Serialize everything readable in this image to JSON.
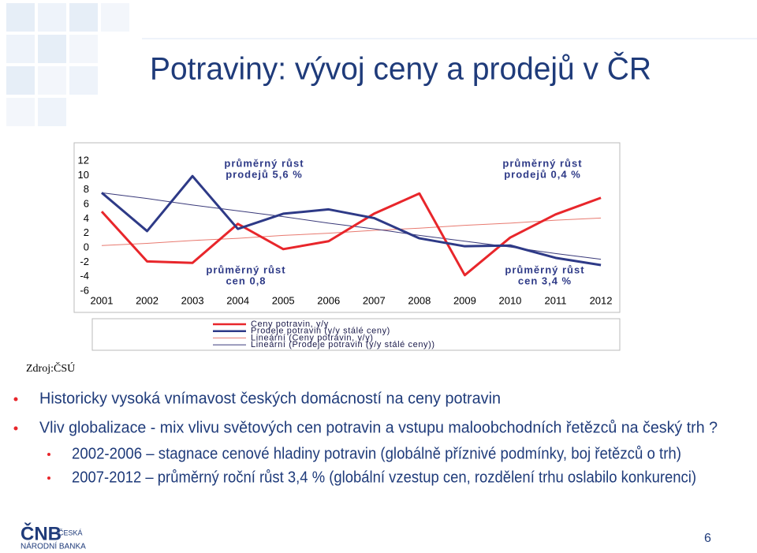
{
  "title": "Potraviny: vývoj ceny a prodejů v ČR",
  "chart_data": {
    "type": "line",
    "categories": [
      "2001",
      "2002",
      "2003",
      "2004",
      "2005",
      "2006",
      "2007",
      "2008",
      "2009",
      "2010",
      "2011",
      "2012"
    ],
    "series": [
      {
        "name": "Ceny potravin, y/y",
        "color": "#e8262b",
        "width": 3,
        "values": [
          5.0,
          -1.9,
          -2.1,
          3.3,
          -0.2,
          0.9,
          4.7,
          7.5,
          -3.8,
          1.4,
          4.6,
          6.9
        ]
      },
      {
        "name": "Prodeje potravin (y/y stálé ceny)",
        "color": "#2e3a87",
        "width": 3,
        "values": [
          7.6,
          2.3,
          9.9,
          2.6,
          4.7,
          5.3,
          4.1,
          1.3,
          0.2,
          0.3,
          -1.4,
          -2.4
        ]
      },
      {
        "name": "Lineární (Ceny potravin, y/y)",
        "color": "#e87a70",
        "width": 1,
        "values": [
          0.3,
          0.6,
          1.0,
          1.3,
          1.7,
          2.0,
          2.4,
          2.7,
          3.1,
          3.4,
          3.8,
          4.1
        ]
      },
      {
        "name": "Lineární (Prodeje potravin (y/y stálé ceny))",
        "color": "#3a3a7a",
        "width": 1,
        "values": [
          7.6,
          6.8,
          5.9,
          5.1,
          4.3,
          3.4,
          2.6,
          1.7,
          0.9,
          0.1,
          -0.8,
          -1.6
        ]
      }
    ],
    "ylim": [
      -6,
      12
    ],
    "yticks": [
      12,
      10,
      8,
      6,
      4,
      2,
      0,
      -2,
      -4,
      -6
    ],
    "grid": false,
    "annotations": [
      {
        "lines": [
          "průměrný růst",
          "prodejů 5,6 %"
        ],
        "color": "#2e3a87"
      },
      {
        "lines": [
          "průměrný růst",
          "cen 0,8"
        ],
        "color": "#e8262b"
      },
      {
        "lines": [
          "průměrný růst",
          "prodejů 0,4 %"
        ],
        "color": "#2e3a87"
      },
      {
        "lines": [
          "průměrný růst",
          "cen 3,4 %"
        ],
        "color": "#e8262b"
      }
    ]
  },
  "source": "Zdroj:ČSÚ",
  "bullets": [
    "Historicky vysoká  vnímavost českých domácností na ceny potravin",
    "Vliv globalizace - mix vlivu světových cen potravin a vstupu maloobchodních řetězců na český trh ?"
  ],
  "sub_bullets": [
    "2002-2006 – stagnace cenové hladiny potravin (globálně příznivé podmínky, boj řetězců o trh)",
    "2007-2012 – průměrný roční růst 3,4 % (globální vzestup cen, rozdělení trhu oslabilo konkurenci)"
  ],
  "logo": {
    "abbr": "ČNB",
    "line1": "ČESKÁ",
    "line2": "NÁRODNÍ BANKA"
  },
  "page_number": 6
}
